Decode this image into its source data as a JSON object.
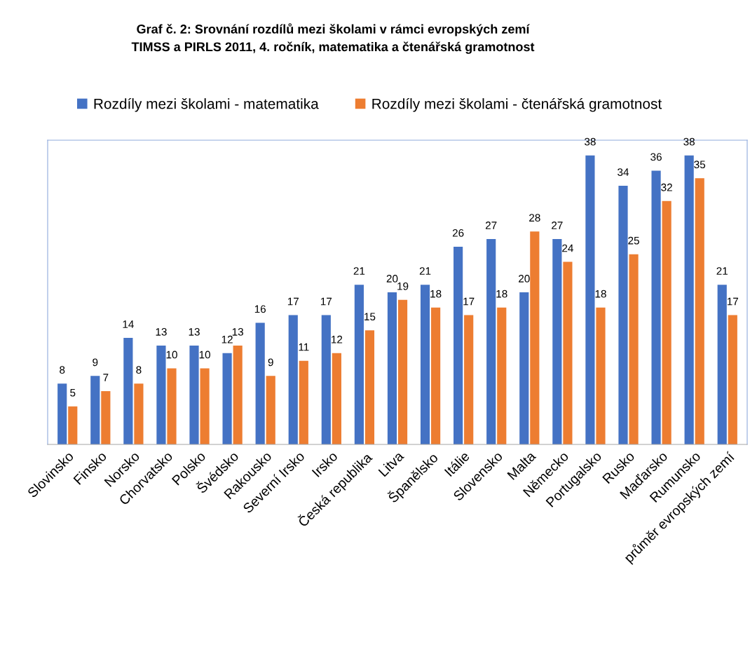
{
  "chart_data": {
    "type": "bar",
    "title": "Graf č. 2: Srovnání rozdílů mezi školami v rámci evropských zemí\nTIMSS a PIRLS 2011, 4. ročník, matematika a čtenářská gramotnost",
    "categories": [
      "Slovinsko",
      "Finsko",
      "Norsko",
      "Chorvatsko",
      "Polsko",
      "Švédsko",
      "Rakousko",
      "Severní Irsko",
      "Irsko",
      "Česká republika",
      "Litva",
      "Španělsko",
      "Itálie",
      "Slovensko",
      "Malta",
      "Německo",
      "Portugalsko",
      "Rusko",
      "Maďarsko",
      "Rumunsko",
      "průměr evropských zemí"
    ],
    "series": [
      {
        "name": "Rozdíly mezi školami - matematika",
        "color": "#4472c4",
        "values": [
          8,
          9,
          14,
          13,
          13,
          12,
          16,
          17,
          17,
          21,
          20,
          21,
          26,
          27,
          20,
          27,
          38,
          34,
          36,
          38,
          21
        ]
      },
      {
        "name": "Rozdíly mezi školami - čtenářská gramotnost",
        "color": "#ed7d31",
        "values": [
          5,
          7,
          8,
          10,
          10,
          13,
          9,
          11,
          12,
          15,
          19,
          18,
          17,
          18,
          28,
          24,
          18,
          25,
          32,
          35,
          17
        ]
      }
    ],
    "ylim": [
      0,
      40
    ],
    "tick_labels": "x",
    "data_labels": true,
    "legend": "top",
    "grid": false
  }
}
